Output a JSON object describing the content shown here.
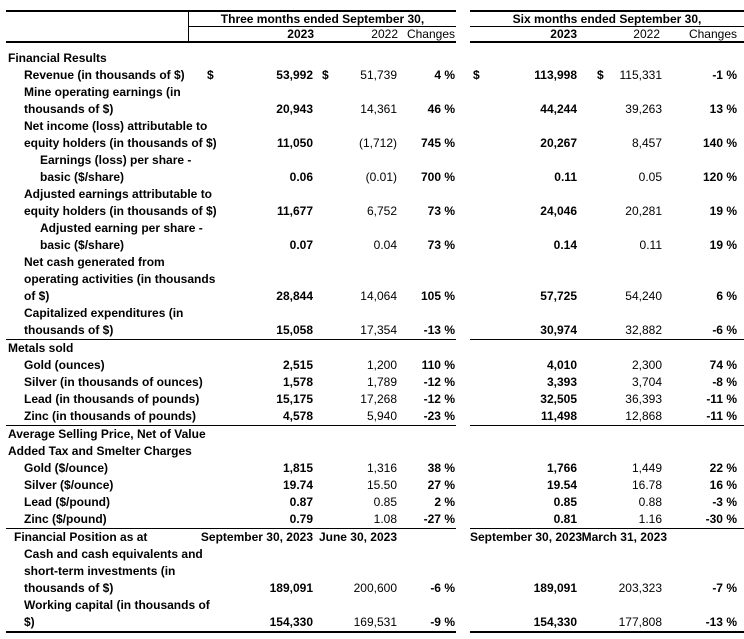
{
  "document": {
    "background_color": "#ffffff",
    "text_color": "#000000",
    "rule_color": "#000000"
  },
  "header": {
    "groups": [
      {
        "title": "Three months ended September 30,",
        "columns": [
          "2023",
          "2022",
          "Changes"
        ]
      },
      {
        "title": "Six months ended September 30,",
        "columns": [
          "2023",
          "2022",
          "Changes"
        ]
      }
    ]
  },
  "table": {
    "rows": [
      {
        "type": "section",
        "lines": [
          "Financial Results"
        ]
      },
      {
        "type": "data",
        "indent": 1,
        "dollar": "$",
        "lines": [
          "Revenue (in thousands of $)"
        ],
        "tm": [
          "53,992",
          "51,739",
          "4 %"
        ],
        "sm": [
          "113,998",
          "115,331",
          "-1 %"
        ]
      },
      {
        "type": "data",
        "indent": 1,
        "lines": [
          "Mine operating earnings (in",
          "thousands of $)"
        ],
        "tm": [
          "20,943",
          "14,361",
          "46 %"
        ],
        "sm": [
          "44,244",
          "39,263",
          "13 %"
        ]
      },
      {
        "type": "data",
        "indent": 1,
        "lines": [
          "Net income (loss) attributable to",
          "equity holders (in thousands of $)"
        ],
        "tm": [
          "11,050",
          "(1,712)",
          "745 %"
        ],
        "sm": [
          "20,267",
          "8,457",
          "140 %"
        ]
      },
      {
        "type": "data",
        "indent": 2,
        "lines": [
          "Earnings (loss) per share -",
          "basic ($/share)"
        ],
        "tm": [
          "0.06",
          "(0.01)",
          "700 %"
        ],
        "sm": [
          "0.11",
          "0.05",
          "120 %"
        ]
      },
      {
        "type": "data",
        "indent": 1,
        "lines": [
          "Adjusted earnings attributable to",
          "equity holders (in thousands of $)"
        ],
        "tm": [
          "11,677",
          "6,752",
          "73 %"
        ],
        "sm": [
          "24,046",
          "20,281",
          "19 %"
        ]
      },
      {
        "type": "data",
        "indent": 2,
        "lines": [
          "Adjusted earning per share -",
          "basic ($/share)"
        ],
        "tm": [
          "0.07",
          "0.04",
          "73 %"
        ],
        "sm": [
          "0.14",
          "0.11",
          "19 %"
        ]
      },
      {
        "type": "data",
        "indent": 1,
        "lines": [
          "Net cash generated from",
          "operating activities (in thousands",
          "of $)"
        ],
        "tm": [
          "28,844",
          "14,064",
          "105 %"
        ],
        "sm": [
          "57,725",
          "54,240",
          "6 %"
        ]
      },
      {
        "type": "data",
        "indent": 1,
        "lines": [
          "Capitalized expenditures (in",
          "thousands of $)"
        ],
        "tm": [
          "15,058",
          "17,354",
          "-13 %"
        ],
        "sm": [
          "30,974",
          "32,882",
          "-6 %"
        ]
      },
      {
        "type": "separator"
      },
      {
        "type": "section",
        "lines": [
          "Metals sold"
        ]
      },
      {
        "type": "data",
        "indent": 1,
        "lines": [
          "Gold (ounces)"
        ],
        "tm": [
          "2,515",
          "1,200",
          "110 %"
        ],
        "sm": [
          "4,010",
          "2,300",
          "74 %"
        ]
      },
      {
        "type": "data",
        "indent": 1,
        "lines": [
          "Silver (in thousands of ounces)"
        ],
        "tm": [
          "1,578",
          "1,789",
          "-12 %"
        ],
        "sm": [
          "3,393",
          "3,704",
          "-8 %"
        ]
      },
      {
        "type": "data",
        "indent": 1,
        "lines": [
          "Lead (in thousands of pounds)"
        ],
        "tm": [
          "15,175",
          "17,268",
          "-12 %"
        ],
        "sm": [
          "32,505",
          "36,393",
          "-11 %"
        ]
      },
      {
        "type": "data",
        "indent": 1,
        "lines": [
          "Zinc (in thousands of pounds)"
        ],
        "tm": [
          "4,578",
          "5,940",
          "-23 %"
        ],
        "sm": [
          "11,498",
          "12,868",
          "-11 %"
        ]
      },
      {
        "type": "separator"
      },
      {
        "type": "section",
        "lines": [
          "Average Selling Price, Net of Value",
          "Added Tax and Smelter Charges"
        ]
      },
      {
        "type": "data",
        "indent": 1,
        "lines": [
          "Gold ($/ounce)"
        ],
        "tm": [
          "1,815",
          "1,316",
          "38 %"
        ],
        "sm": [
          "1,766",
          "1,449",
          "22 %"
        ]
      },
      {
        "type": "data",
        "indent": 1,
        "lines": [
          "Silver ($/ounce)"
        ],
        "tm": [
          "19.74",
          "15.50",
          "27 %"
        ],
        "sm": [
          "19.54",
          "16.78",
          "16 %"
        ]
      },
      {
        "type": "data",
        "indent": 1,
        "lines": [
          "Lead ($/pound)"
        ],
        "tm": [
          "0.87",
          "0.85",
          "2 %"
        ],
        "sm": [
          "0.85",
          "0.88",
          "-3 %"
        ]
      },
      {
        "type": "data",
        "indent": 1,
        "lines": [
          "Zinc ($/pound)"
        ],
        "tm": [
          "0.79",
          "1.08",
          "-27 %"
        ],
        "sm": [
          "0.81",
          "1.16",
          "-30 %"
        ]
      },
      {
        "type": "separator"
      },
      {
        "type": "dates",
        "lines": [
          "Financial Position as at"
        ],
        "tm": [
          "September 30, 2023",
          "June 30, 2023"
        ],
        "sm": [
          "September 30, 2023",
          "March 31, 2023"
        ]
      },
      {
        "type": "data",
        "indent": 1,
        "lines": [
          "Cash and cash equivalents and",
          "short-term investments (in",
          "thousands of $)"
        ],
        "tm": [
          "189,091",
          "200,600",
          "-6 %"
        ],
        "sm": [
          "189,091",
          "203,323",
          "-7 %"
        ]
      },
      {
        "type": "data",
        "indent": 1,
        "lines": [
          "Working capital (in thousands of",
          "$)"
        ],
        "tm": [
          "154,330",
          "169,531",
          "-9 %"
        ],
        "sm": [
          "154,330",
          "177,808",
          "-13 %"
        ]
      },
      {
        "type": "bottom"
      }
    ]
  }
}
